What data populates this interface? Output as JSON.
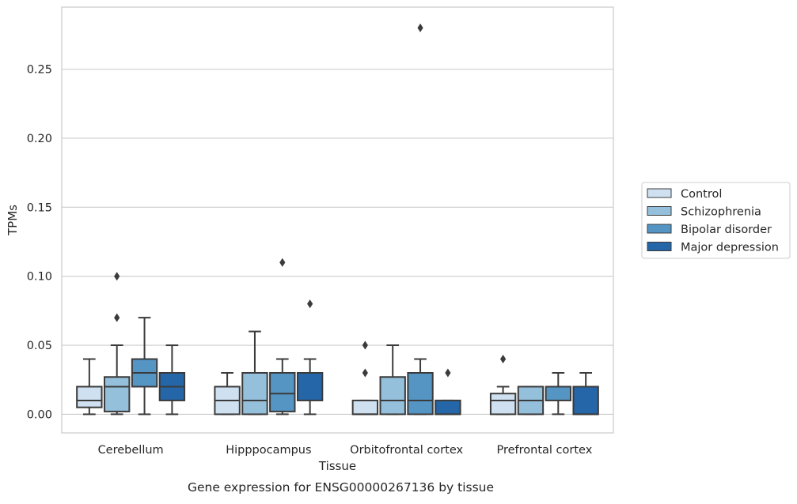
{
  "chart_data": {
    "type": "box",
    "title": "Gene expression for ENSG00000267136 by tissue",
    "xlabel": "Tissue",
    "ylabel": "TPMs",
    "ylim": [
      -0.0135,
      0.295
    ],
    "yticks": [
      0.0,
      0.05,
      0.1,
      0.15,
      0.2,
      0.25
    ],
    "ytick_labels": [
      "0.00",
      "0.05",
      "0.10",
      "0.15",
      "0.20",
      "0.25"
    ],
    "grid": "horizontal",
    "legend_position": "right",
    "categories": [
      "Cerebellum",
      "Hipppocampus",
      "Orbitofrontal cortex",
      "Prefrontal cortex"
    ],
    "series": [
      {
        "name": "Control",
        "color": "#cfe0f0",
        "boxes": [
          {
            "whislo": 0.0,
            "q1": 0.005,
            "med": 0.01,
            "q3": 0.02,
            "whishi": 0.04,
            "fliers": []
          },
          {
            "whislo": 0.0,
            "q1": 0.0,
            "med": 0.01,
            "q3": 0.02,
            "whishi": 0.03,
            "fliers": []
          },
          {
            "whislo": 0.0,
            "q1": 0.0,
            "med": 0.0,
            "q3": 0.01,
            "whishi": 0.01,
            "fliers": [
              0.03,
              0.05
            ]
          },
          {
            "whislo": 0.0,
            "q1": 0.0,
            "med": 0.01,
            "q3": 0.015,
            "whishi": 0.02,
            "fliers": [
              0.04
            ]
          }
        ]
      },
      {
        "name": "Schizophrenia",
        "color": "#94c0dc",
        "boxes": [
          {
            "whislo": 0.0,
            "q1": 0.002,
            "med": 0.02,
            "q3": 0.027,
            "whishi": 0.05,
            "fliers": [
              0.07,
              0.1
            ]
          },
          {
            "whislo": 0.0,
            "q1": 0.0,
            "med": 0.01,
            "q3": 0.03,
            "whishi": 0.06,
            "fliers": []
          },
          {
            "whislo": 0.0,
            "q1": 0.0,
            "med": 0.01,
            "q3": 0.027,
            "whishi": 0.05,
            "fliers": []
          },
          {
            "whislo": 0.0,
            "q1": 0.0,
            "med": 0.01,
            "q3": 0.02,
            "whishi": 0.02,
            "fliers": []
          }
        ]
      },
      {
        "name": "Bipolar disorder",
        "color": "#5495c4",
        "boxes": [
          {
            "whislo": 0.0,
            "q1": 0.02,
            "med": 0.03,
            "q3": 0.04,
            "whishi": 0.07,
            "fliers": []
          },
          {
            "whislo": 0.0,
            "q1": 0.002,
            "med": 0.015,
            "q3": 0.03,
            "whishi": 0.04,
            "fliers": [
              0.11
            ]
          },
          {
            "whislo": 0.0,
            "q1": 0.0,
            "med": 0.01,
            "q3": 0.03,
            "whishi": 0.04,
            "fliers": [
              0.28
            ]
          },
          {
            "whislo": 0.0,
            "q1": 0.01,
            "med": 0.02,
            "q3": 0.02,
            "whishi": 0.03,
            "fliers": []
          }
        ]
      },
      {
        "name": "Major depression",
        "color": "#2466a8",
        "boxes": [
          {
            "whislo": 0.0,
            "q1": 0.01,
            "med": 0.02,
            "q3": 0.03,
            "whishi": 0.05,
            "fliers": []
          },
          {
            "whislo": 0.0,
            "q1": 0.01,
            "med": 0.03,
            "q3": 0.03,
            "whishi": 0.04,
            "fliers": [
              0.08
            ]
          },
          {
            "whislo": 0.0,
            "q1": 0.0,
            "med": 0.0,
            "q3": 0.01,
            "whishi": 0.01,
            "fliers": [
              0.03
            ]
          },
          {
            "whislo": 0.0,
            "q1": 0.0,
            "med": 0.0,
            "q3": 0.02,
            "whishi": 0.03,
            "fliers": []
          }
        ]
      }
    ]
  }
}
